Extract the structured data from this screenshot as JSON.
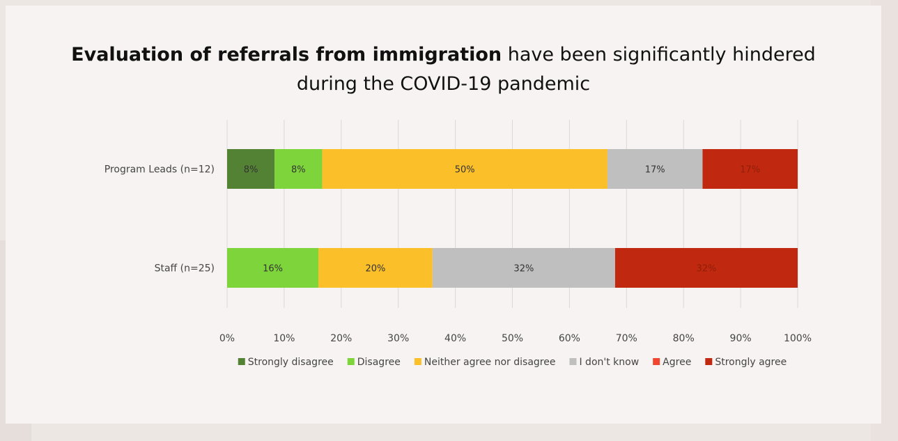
{
  "title": {
    "bold": "Evaluation of referrals from immigration",
    "line1_rest": " have been significantly hindered",
    "line2": "during the COVID-19 pandemic"
  },
  "chart_data": {
    "type": "bar",
    "orientation": "horizontal",
    "stacked": true,
    "categories": [
      "Program Leads (n=12)",
      "Staff (n=25)"
    ],
    "xlim": [
      0,
      100
    ],
    "x_ticks": [
      "0%",
      "10%",
      "20%",
      "30%",
      "40%",
      "50%",
      "60%",
      "70%",
      "80%",
      "90%",
      "100%"
    ],
    "grid": true,
    "legend_position": "bottom",
    "series": [
      {
        "name": "Strongly disagree",
        "color": "#548235",
        "values": [
          8.33,
          0
        ],
        "labels": [
          "8%",
          ""
        ]
      },
      {
        "name": "Disagree",
        "color": "#7ed43b",
        "values": [
          8.33,
          16
        ],
        "labels": [
          "8%",
          "16%"
        ]
      },
      {
        "name": "Neither agree nor disagree",
        "color": "#fbbf2a",
        "values": [
          50,
          20
        ],
        "labels": [
          "50%",
          "20%"
        ]
      },
      {
        "name": "I don't know",
        "color": "#bfbfbf",
        "values": [
          16.67,
          32
        ],
        "labels": [
          "17%",
          "32%"
        ]
      },
      {
        "name": "Agree",
        "color": "#f0452e",
        "values": [
          0,
          0
        ],
        "labels": [
          "",
          ""
        ]
      },
      {
        "name": "Strongly agree",
        "color": "#c0290f",
        "values": [
          16.67,
          32
        ],
        "labels": [
          "17%",
          "32%"
        ]
      }
    ]
  }
}
